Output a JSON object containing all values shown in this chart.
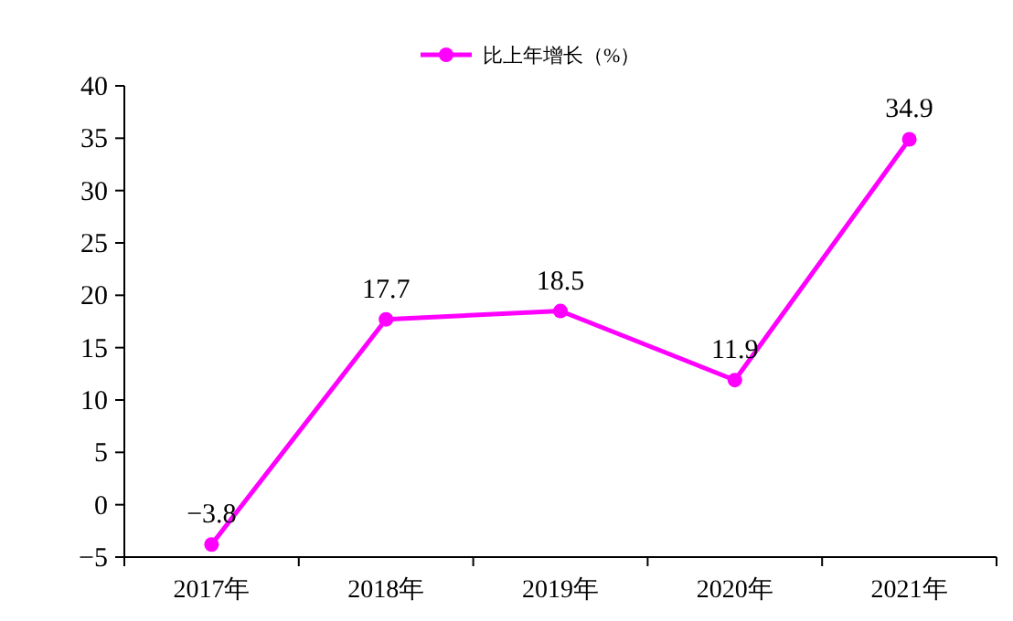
{
  "chart_data": {
    "type": "line",
    "categories": [
      "2017年",
      "2018年",
      "2019年",
      "2020年",
      "2021年"
    ],
    "series": [
      {
        "name": "比上年增长（%）",
        "color": "#ff00ff",
        "values": [
          -3.8,
          17.7,
          18.5,
          11.9,
          34.9
        ],
        "value_labels": [
          "−3.8",
          "17.7",
          "18.5",
          "11.9",
          "34.9"
        ]
      }
    ],
    "ylim": [
      -5,
      40
    ],
    "yticks": [
      {
        "value": -5,
        "label": "−5"
      },
      0,
      5,
      10,
      15,
      20,
      25,
      30,
      35,
      40
    ],
    "marker": "circle",
    "legend": "top",
    "grid": false
  }
}
